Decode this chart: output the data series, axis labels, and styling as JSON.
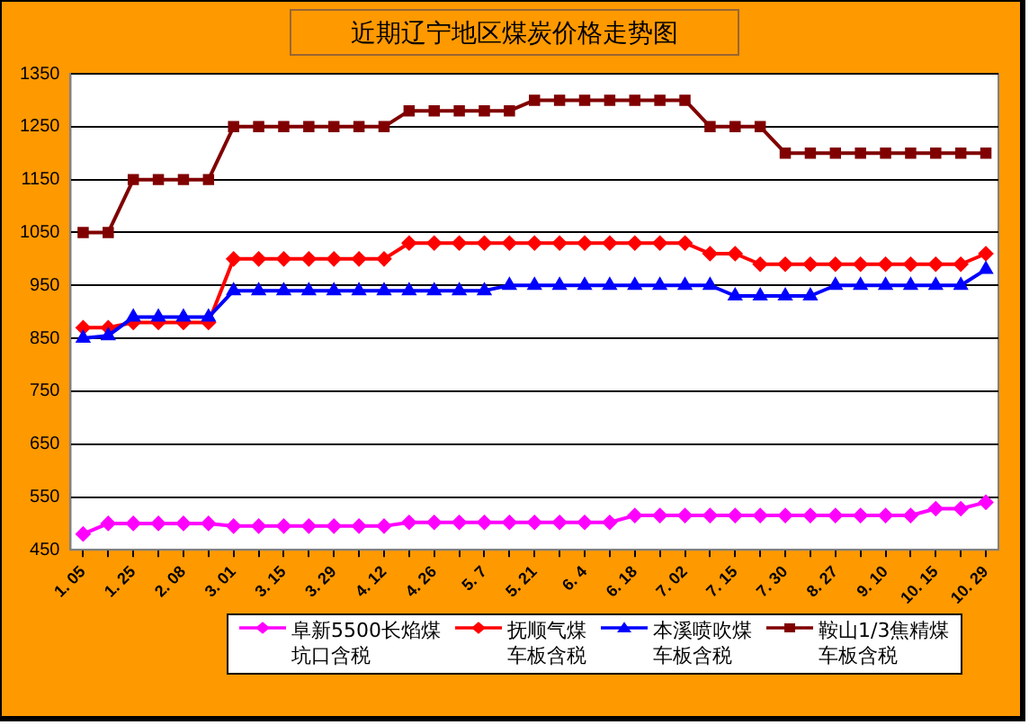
{
  "chart_data": {
    "type": "line",
    "title": "近期辽宁地区煤炭价格走势图",
    "categories": [
      "1. 05",
      null,
      "1. 25",
      null,
      "2. 08",
      null,
      "3. 01",
      null,
      "3. 15",
      null,
      "3. 29",
      null,
      "4. 12",
      null,
      "4. 26",
      null,
      "5. 7",
      null,
      "5. 21",
      null,
      "6. 4",
      null,
      "6. 18",
      null,
      "7. 02",
      null,
      "7. 15",
      null,
      "7. 30",
      null,
      "8. 27",
      null,
      "9. 10",
      null,
      "10. 15",
      null,
      "10. 29"
    ],
    "series": [
      {
        "name": "阜新5500长焰煤坑口含税",
        "color": "#ff00ff",
        "marker": "diamond",
        "values": [
          480,
          500,
          500,
          500,
          500,
          500,
          495,
          495,
          495,
          495,
          495,
          495,
          495,
          502,
          502,
          502,
          502,
          502,
          502,
          502,
          502,
          502,
          515,
          515,
          515,
          515,
          515,
          515,
          515,
          515,
          515,
          515,
          515,
          515,
          528,
          528,
          540
        ]
      },
      {
        "name": "抚顺气煤车板含税",
        "color": "#ff0000",
        "marker": "diamond",
        "values": [
          870,
          870,
          880,
          880,
          880,
          880,
          1000,
          1000,
          1000,
          1000,
          1000,
          1000,
          1000,
          1030,
          1030,
          1030,
          1030,
          1030,
          1030,
          1030,
          1030,
          1030,
          1030,
          1030,
          1030,
          1010,
          1010,
          990,
          990,
          990,
          990,
          990,
          990,
          990,
          990,
          990,
          1010
        ]
      },
      {
        "name": "本溪喷吹煤车板含税",
        "color": "#0000ff",
        "marker": "triangle",
        "values": [
          850,
          855,
          890,
          890,
          890,
          890,
          940,
          940,
          940,
          940,
          940,
          940,
          940,
          940,
          940,
          940,
          940,
          950,
          950,
          950,
          950,
          950,
          950,
          950,
          950,
          950,
          930,
          930,
          930,
          930,
          950,
          950,
          950,
          950,
          950,
          950,
          980
        ]
      },
      {
        "name": "鞍山1/3焦精煤车板含税",
        "color": "#800000",
        "marker": "square",
        "values": [
          1050,
          1050,
          1150,
          1150,
          1150,
          1150,
          1250,
          1250,
          1250,
          1250,
          1250,
          1250,
          1250,
          1280,
          1280,
          1280,
          1280,
          1280,
          1300,
          1300,
          1300,
          1300,
          1300,
          1300,
          1300,
          1250,
          1250,
          1250,
          1200,
          1200,
          1200,
          1200,
          1200,
          1200,
          1200,
          1200,
          1200
        ]
      }
    ],
    "ylim": [
      450,
      1350
    ],
    "yticks": [
      450,
      550,
      650,
      750,
      850,
      950,
      1050,
      1150,
      1250,
      1350
    ],
    "grid": "y",
    "legend": "bottom",
    "line_style": "solid"
  }
}
